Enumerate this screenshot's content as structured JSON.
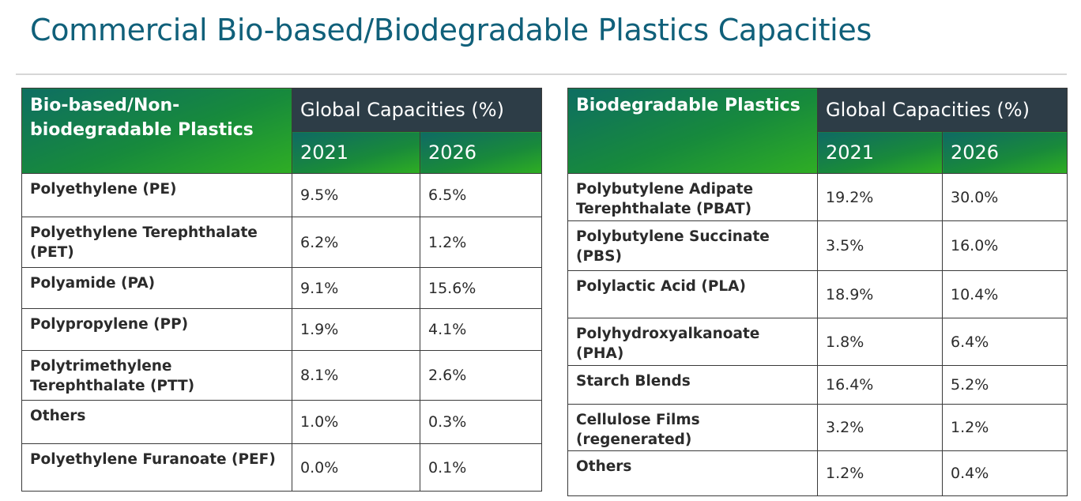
{
  "page": {
    "title": "Commercial Bio-based/Biodegradable Plastics Capacities"
  },
  "left_table": {
    "corner_header": "Bio-based/Non-biodegradable Plastics",
    "group_header": "Global Capacities (%)",
    "year_2021": "2021",
    "year_2026": "2026",
    "rows": [
      {
        "name": "Polyethylene (PE)",
        "v2021": "9.5%",
        "v2026": "6.5%"
      },
      {
        "name": "Polyethylene Terephthalate (PET)",
        "v2021": "6.2%",
        "v2026": "1.2%"
      },
      {
        "name": "Polyamide (PA)",
        "v2021": "9.1%",
        "v2026": "15.6%"
      },
      {
        "name": "Polypropylene (PP)",
        "v2021": "1.9%",
        "v2026": "4.1%"
      },
      {
        "name": "Polytrimethylene Terephthalate (PTT)",
        "v2021": "8.1%",
        "v2026": "2.6%"
      },
      {
        "name": "Others",
        "v2021": "1.0%",
        "v2026": "0.3%"
      },
      {
        "name": "Polyethylene Furanoate (PEF)",
        "v2021": "0.0%",
        "v2026": "0.1%"
      }
    ]
  },
  "right_table": {
    "corner_header": "Biodegradable Plastics",
    "group_header": "Global Capacities (%)",
    "year_2021": "2021",
    "year_2026": "2026",
    "rows": [
      {
        "name": "Polybutylene Adipate Terephthalate (PBAT)",
        "v2021": "19.2%",
        "v2026": "30.0%"
      },
      {
        "name": "Polybutylene Succinate (PBS)",
        "v2021": "3.5%",
        "v2026": "16.0%"
      },
      {
        "name": "Polylactic Acid (PLA)",
        "v2021": "18.9%",
        "v2026": "10.4%"
      },
      {
        "name": "Polyhydroxyalkanoate (PHA)",
        "v2021": "1.8%",
        "v2026": "6.4%"
      },
      {
        "name": "Starch Blends",
        "v2021": "16.4%",
        "v2026": "5.2%"
      },
      {
        "name": "Cellulose Films (regenerated)",
        "v2021": "3.2%",
        "v2026": "1.2%"
      },
      {
        "name": "Others",
        "v2021": "1.2%",
        "v2026": "0.4%"
      }
    ]
  },
  "colors": {
    "title": "#10607a",
    "group_header_bg": "#2d3d47",
    "green_dark": "#0e6e62",
    "green_light": "#2fae24"
  }
}
